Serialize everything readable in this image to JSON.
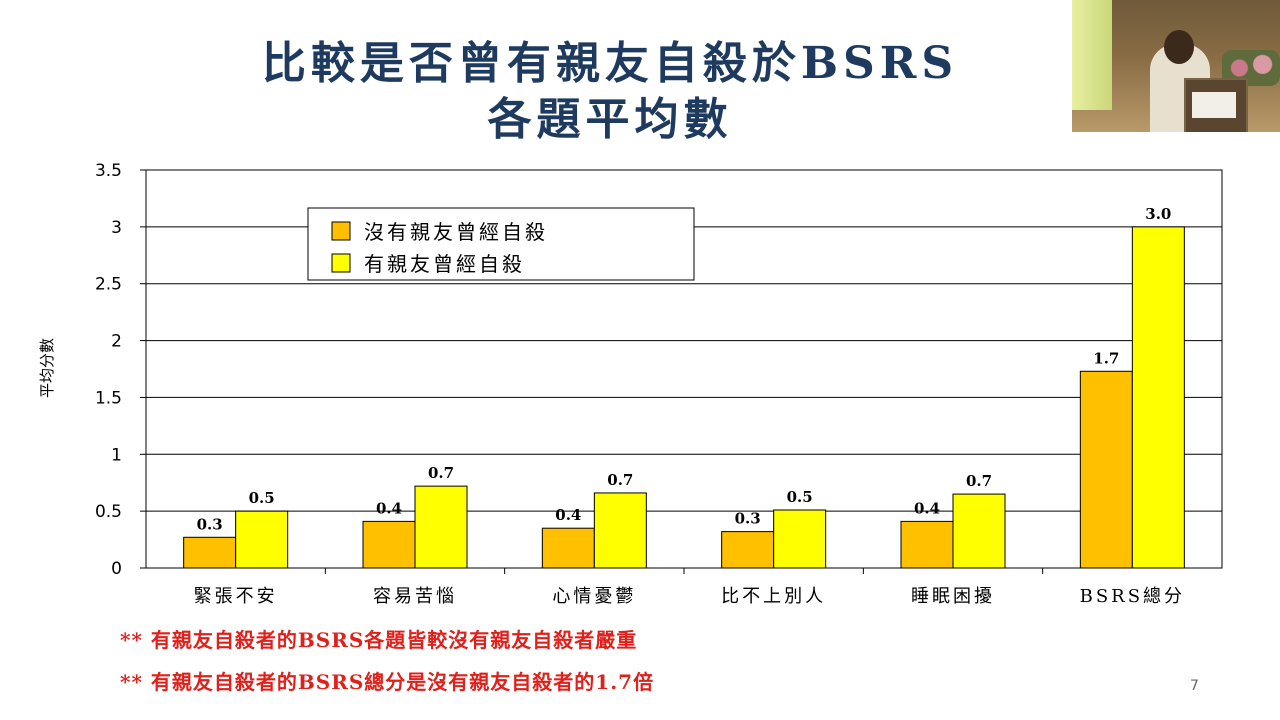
{
  "slide": {
    "title_line1": "比較是否曾有親友自殺於BSRS",
    "title_line2": "各題平均數",
    "notes": [
      "** 有親友自殺者的BSRS各題皆較沒有親友自殺者嚴重",
      "**  有親友自殺者的BSRS總分是沒有親友自殺者的1.7倍"
    ],
    "page_number": "7"
  },
  "colors": {
    "series_no": "#ffc000",
    "series_yes": "#ffff00",
    "title": "#1f3a5f",
    "notes": "#e0201b"
  },
  "chart_data": {
    "type": "bar",
    "title": "",
    "xlabel": "",
    "ylabel": "平均分數",
    "ylim": [
      0,
      3.5
    ],
    "yticks": [
      0,
      0.5,
      1,
      1.5,
      2,
      2.5,
      3,
      3.5
    ],
    "ytick_labels": [
      "0",
      "0.5",
      "1",
      "1.5",
      "2",
      "2.5",
      "3",
      "3.5"
    ],
    "grid": true,
    "legend_position": "top-left",
    "categories": [
      "緊張不安",
      "容易苦惱",
      "心情憂鬱",
      "比不上別人",
      "睡眠困擾",
      "BSRS總分"
    ],
    "series": [
      {
        "name": "沒有親友曾經自殺",
        "values": [
          0.27,
          0.41,
          0.35,
          0.32,
          0.41,
          1.73
        ],
        "labels": [
          "0.3",
          "0.4",
          "0.4",
          "0.3",
          "0.4",
          "1.7"
        ]
      },
      {
        "name": "有親友曾經自殺",
        "values": [
          0.5,
          0.72,
          0.66,
          0.51,
          0.65,
          3.0
        ],
        "labels": [
          "0.5",
          "0.7",
          "0.7",
          "0.5",
          "0.7",
          "3.0"
        ]
      }
    ]
  }
}
